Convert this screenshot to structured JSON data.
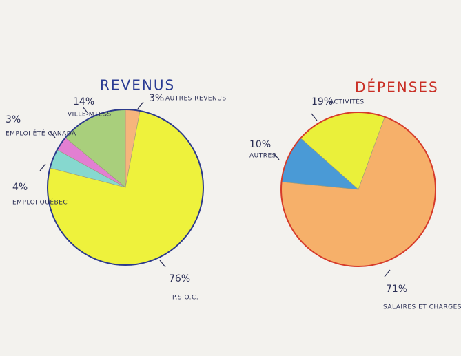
{
  "chart_data": [
    {
      "type": "pie",
      "title": "REVENUS",
      "categories": [
        "AUTRES REVENUS",
        "P.S.O.C.",
        "EMPLOI QUÉBEC",
        "EMPLOI ÉTÉ CANADA",
        "VILLE-MTESS"
      ],
      "values": [
        3,
        76,
        4,
        3,
        14
      ],
      "value_labels": [
        "3%",
        "76%",
        "4%",
        "3%",
        "14%"
      ],
      "colors": [
        "#f6b57c",
        "#eef23c",
        "#86d8cf",
        "#e27fd2",
        "#a9cf7c"
      ]
    },
    {
      "type": "pie",
      "title": "DÉPENSES",
      "categories": [
        "SALAIRES ET CHARGES SOCIALES",
        "AUTRES",
        "ACTIVITÉS"
      ],
      "values": [
        71,
        10,
        19
      ],
      "value_labels": [
        "71%",
        "10%",
        "19%"
      ],
      "colors": [
        "#f6b06a",
        "#4a9ad6",
        "#eaf03a"
      ]
    }
  ]
}
